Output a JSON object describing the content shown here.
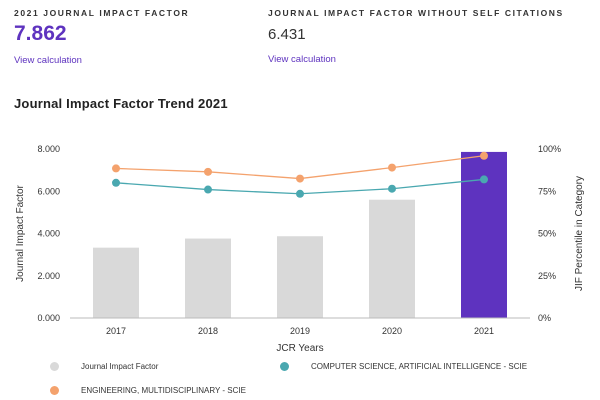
{
  "metrics": {
    "jif": {
      "label": "2021 JOURNAL IMPACT FACTOR",
      "value": "7.862",
      "link": "View calculation"
    },
    "jif_no_self": {
      "label": "JOURNAL IMPACT FACTOR WITHOUT SELF CITATIONS",
      "value": "6.431",
      "link": "View calculation"
    }
  },
  "trend_title": "Journal Impact Factor Trend 2021",
  "colors": {
    "accent": "#5e33bf",
    "bar": "#d9d9d9",
    "teal": "#4aa8b0",
    "orange": "#f4a26d"
  },
  "chart_data": {
    "type": "bar",
    "categories": [
      "2017",
      "2018",
      "2019",
      "2020",
      "2021"
    ],
    "values": [
      3.33,
      3.76,
      3.87,
      5.6,
      7.862
    ],
    "highlight_index": 4,
    "xlabel": "JCR Years",
    "ylabel": "Journal Impact Factor",
    "ylabel_right": "JIF Percentile in Category",
    "ylim": [
      0,
      8
    ],
    "ylim_right": [
      0,
      100
    ],
    "yticks": [
      "0.000",
      "2.000",
      "4.000",
      "6.000",
      "8.000"
    ],
    "yticks_right": [
      "0%",
      "25%",
      "50%",
      "75%",
      "100%"
    ],
    "series": [
      {
        "name": "Journal Impact Factor",
        "type": "bar",
        "color": "#d9d9d9",
        "values": [
          3.33,
          3.76,
          3.87,
          5.6,
          7.862
        ]
      },
      {
        "name": "COMPUTER SCIENCE, ARTIFICIAL INTELLIGENCE - SCIE",
        "type": "line",
        "axis": "right",
        "color": "#4aa8b0",
        "values": [
          80,
          76,
          73.5,
          76.5,
          82
        ]
      },
      {
        "name": "ENGINEERING, MULTIDISCIPLINARY - SCIE",
        "type": "line",
        "axis": "right",
        "color": "#f4a26d",
        "values": [
          88.5,
          86.5,
          82.5,
          89,
          96
        ]
      }
    ],
    "grid": false,
    "legend_position": "bottom"
  }
}
